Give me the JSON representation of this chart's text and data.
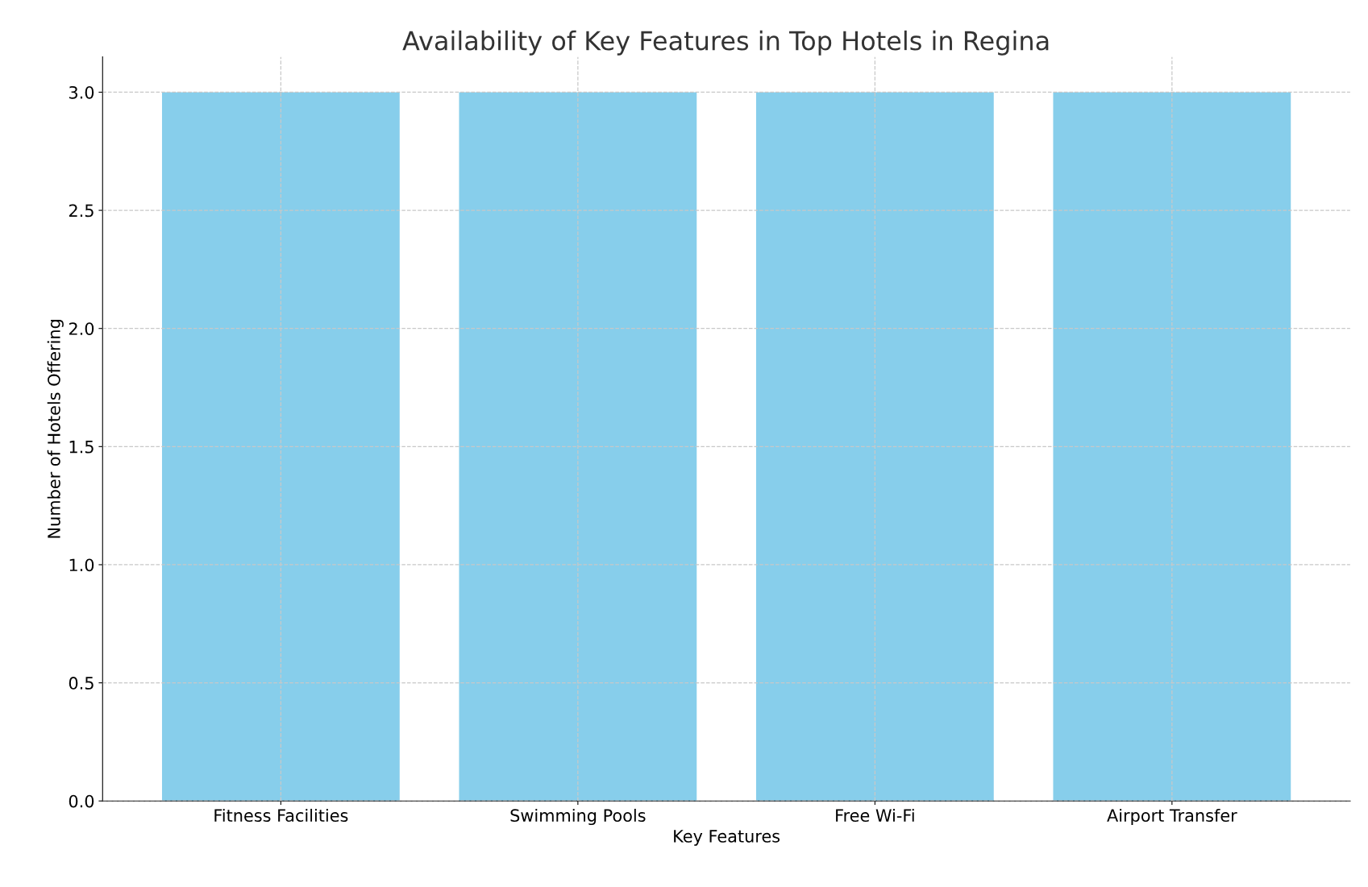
{
  "chart_data": {
    "type": "bar",
    "title": "Availability of Key Features in Top Hotels in Regina",
    "xlabel": "Key Features",
    "ylabel": "Number of Hotels Offering",
    "categories": [
      "Fitness Facilities",
      "Swimming Pools",
      "Free Wi-Fi",
      "Airport Transfer"
    ],
    "values": [
      3,
      3,
      3,
      3
    ],
    "color": "#87ceeb",
    "ylim": [
      0,
      3.15
    ],
    "yticks": [
      {
        "value": 0,
        "label": "0.0"
      },
      {
        "value": 0.5,
        "label": "0.5"
      },
      {
        "value": 1,
        "label": "1.0"
      },
      {
        "value": 1.5,
        "label": "1.5"
      },
      {
        "value": 2,
        "label": "2.0"
      },
      {
        "value": 2.5,
        "label": "2.5"
      },
      {
        "value": 3,
        "label": "3.0"
      }
    ],
    "grid": true
  }
}
